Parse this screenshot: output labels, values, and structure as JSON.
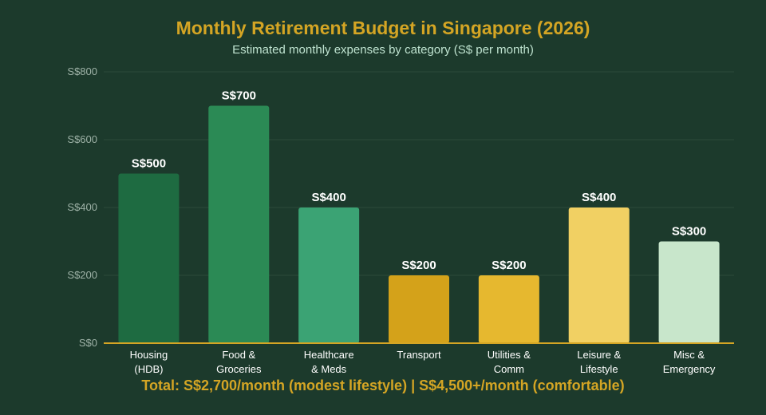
{
  "chart_data": {
    "type": "bar",
    "title": "Monthly Retirement Budget in Singapore (2026)",
    "subtitle": "Estimated monthly expenses by category (S$ per month)",
    "categories": [
      [
        "Housing",
        "(HDB)"
      ],
      [
        "Food &",
        "Groceries"
      ],
      [
        "Healthcare",
        "& Meds"
      ],
      [
        "Transport"
      ],
      [
        "Utilities &",
        "Comm"
      ],
      [
        "Leisure &",
        "Lifestyle"
      ],
      [
        "Misc &",
        "Emergency"
      ]
    ],
    "values": [
      500,
      700,
      400,
      200,
      200,
      400,
      300
    ],
    "value_labels": [
      "S$500",
      "S$700",
      "S$400",
      "S$200",
      "S$200",
      "S$400",
      "S$300"
    ],
    "bar_colors": [
      "#1e6b41",
      "#2b8a55",
      "#3ba374",
      "#d4a21a",
      "#e6b82f",
      "#f1d063",
      "#c8e6cb"
    ],
    "ylim": [
      0,
      800
    ],
    "yticks": [
      0,
      200,
      400,
      600,
      800
    ],
    "ytick_labels": [
      "S$0",
      "S$200",
      "S$400",
      "S$600",
      "S$800"
    ],
    "grid": true,
    "xlabel": "",
    "ylabel": "",
    "footer": "Total: S$2,700/month (modest lifestyle) | S$4,500+/month (comfortable)",
    "colors": {
      "background": "#1c3a2c",
      "title": "#d4a524",
      "subtitle": "#bfe3d0",
      "axis_line": "#d4a524",
      "grid": "#2b4a3a",
      "tick_text": "#9fb3a8",
      "label_text": "#ffffff"
    }
  }
}
